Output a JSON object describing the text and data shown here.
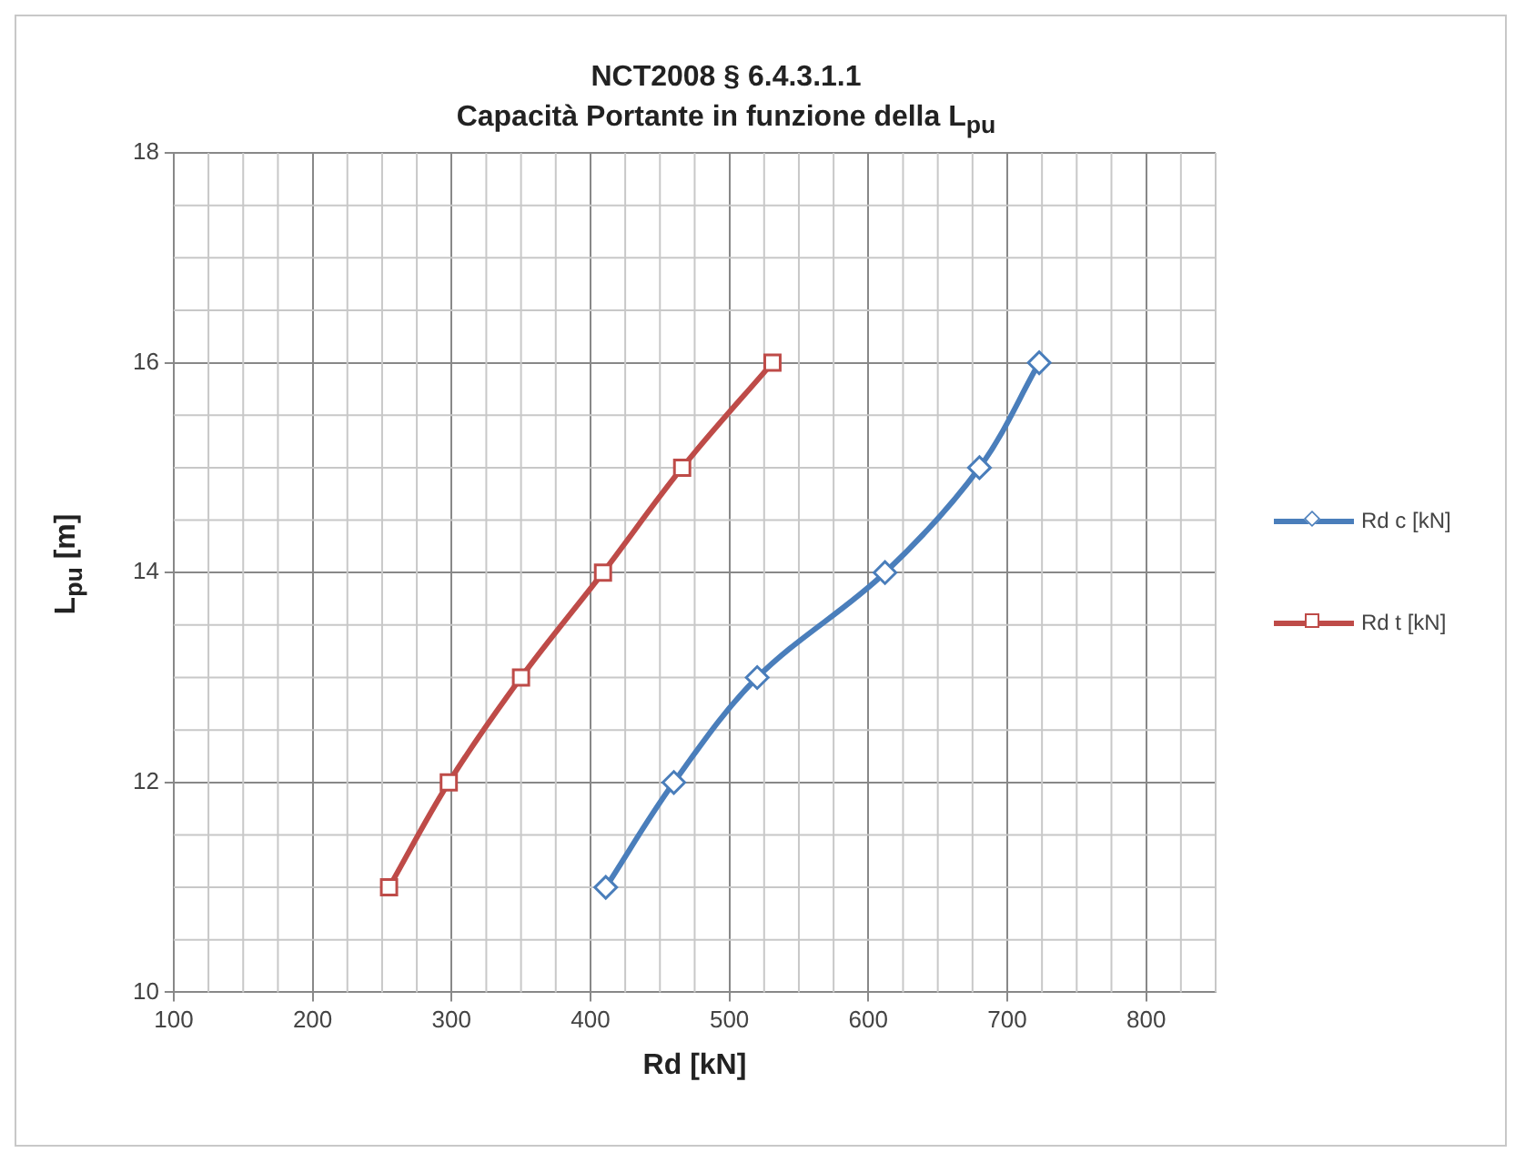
{
  "chart_data": {
    "type": "line",
    "title": "NCT2008  § 6.4.3.1.1",
    "subtitle": "Capacità Portante in funzione della L$_{pu}$",
    "xlabel": "Rd [kN]",
    "ylabel": "L$_{pu}$ [m]",
    "series": [
      {
        "name": "Rd c [kN]",
        "color": "#4a7ebb",
        "marker": "diamond",
        "x": [
          411,
          460,
          520,
          612,
          680,
          723
        ],
        "values": [
          11,
          12,
          13,
          14,
          15,
          16
        ]
      },
      {
        "name": "Rd t [kN]",
        "color": "#be4b48",
        "marker": "square",
        "x": [
          255,
          298,
          350,
          409,
          466,
          531
        ],
        "values": [
          11,
          12,
          13,
          14,
          15,
          16
        ]
      }
    ],
    "xlim": [
      100,
      850
    ],
    "xticks": [
      100,
      200,
      300,
      400,
      500,
      600,
      700,
      800
    ],
    "ylim": [
      10,
      18
    ],
    "yticks": [
      10,
      12,
      14,
      16,
      18
    ],
    "grid": true,
    "legend": "right"
  }
}
